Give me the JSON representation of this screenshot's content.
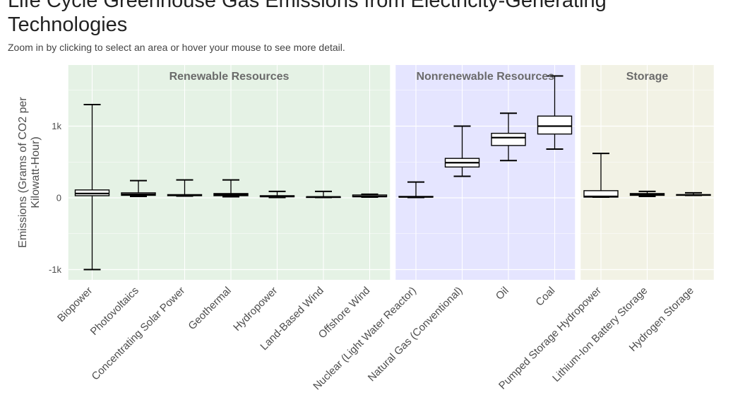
{
  "header": {
    "title": "Life Cycle Greenhouse Gas Emissions from Electricity-Generating Technologies",
    "subtitle": "Zoom in by clicking to select an area or hover your mouse to see more detail."
  },
  "chart_data": {
    "type": "boxplot",
    "title": "Life Cycle Greenhouse Gas Emissions from Electricity-Generating Technologies",
    "ylabel": "Emissions (Grams of CO2 per Kilowatt-Hour)",
    "ylabel_lines": [
      "Emissions (Grams of CO2 per",
      "Kilowatt-Hour)"
    ],
    "ylim": [
      -1150,
      1700
    ],
    "yticks": [
      -1000,
      0,
      1000
    ],
    "ytick_labels": [
      "-1k",
      "0",
      "1k"
    ],
    "grid": true,
    "colors": {
      "renewable": "#e5f2e5",
      "nonrenewable": "#e5e5ff",
      "storage": "#f2f2e5",
      "grid": "#ffffff",
      "box": "#000000"
    },
    "groups": [
      {
        "name": "Renewable Resources",
        "start": 0,
        "end": 6,
        "color_key": "renewable"
      },
      {
        "name": "Nonrenewable Resources",
        "start": 7,
        "end": 10,
        "color_key": "nonrenewable"
      },
      {
        "name": "Storage",
        "start": 11,
        "end": 13,
        "color_key": "storage"
      }
    ],
    "categories": [
      "Biopower",
      "Photovoltaics",
      "Concentrating Solar Power",
      "Geothermal",
      "Hydropower",
      "Land-Based Wind",
      "Offshore Wind",
      "Nuclear (Light Water Reactor)",
      "Natural Gas (Conventional)",
      "Oil",
      "Coal",
      "Pumped Storage Hydropower",
      "Lithium-Ion Battery Storage",
      "Hydrogen Storage"
    ],
    "boxes": [
      {
        "min": -1000,
        "q1": 30,
        "median": 60,
        "q3": 110,
        "max": 1300
      },
      {
        "min": 20,
        "q1": 35,
        "median": 50,
        "q3": 70,
        "max": 240
      },
      {
        "min": 25,
        "q1": 30,
        "median": 35,
        "q3": 45,
        "max": 250
      },
      {
        "min": 15,
        "q1": 30,
        "median": 45,
        "q3": 60,
        "max": 250
      },
      {
        "min": 5,
        "q1": 15,
        "median": 20,
        "q3": 30,
        "max": 90
      },
      {
        "min": 5,
        "q1": 10,
        "median": 13,
        "q3": 15,
        "max": 90
      },
      {
        "min": 10,
        "q1": 15,
        "median": 20,
        "q3": 40,
        "max": 50
      },
      {
        "min": 5,
        "q1": 10,
        "median": 13,
        "q3": 20,
        "max": 220
      },
      {
        "min": 300,
        "q1": 430,
        "median": 490,
        "q3": 550,
        "max": 1000
      },
      {
        "min": 520,
        "q1": 730,
        "median": 840,
        "q3": 900,
        "max": 1180
      },
      {
        "min": 680,
        "q1": 890,
        "median": 1000,
        "q3": 1140,
        "max": 1700
      },
      {
        "min": 10,
        "q1": 10,
        "median": 20,
        "q3": 100,
        "max": 620
      },
      {
        "min": 20,
        "q1": 35,
        "median": 45,
        "q3": 60,
        "max": 90
      },
      {
        "min": 35,
        "q1": 38,
        "median": 40,
        "q3": 45,
        "max": 70
      }
    ]
  }
}
